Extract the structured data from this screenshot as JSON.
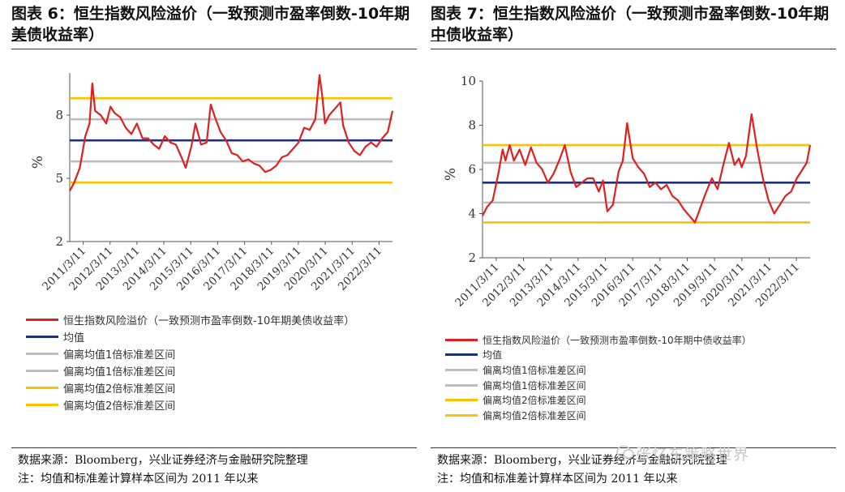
{
  "watermark": "张忆东策略世界",
  "panels": [
    {
      "title_pre": "图表 6：恒生指数风险溢价（一致预测市盈率倒数-10年期",
      "title_hl": "美",
      "title_post": "债收益率）",
      "source": "数据来源：Bloomberg，兴业证券经济与金融研究院整理",
      "note": "注：均值和标准差计算样本区间为 2011 年以来",
      "legend": [
        {
          "label": "恒生指数风险溢价（一致预测市盈率倒数-10年期美债收益率）",
          "color": "#e02020"
        },
        {
          "label": "均值",
          "color": "#1f2f78"
        },
        {
          "label": "偏离均值1倍标准差区间",
          "color": "#bdbdbd"
        },
        {
          "label": "偏离均值1倍标准差区间",
          "color": "#bdbdbd"
        },
        {
          "label": "偏离均值2倍标准差区间",
          "color": "#ffc000"
        },
        {
          "label": "偏离均值2倍标准差区间",
          "color": "#ffc000"
        }
      ],
      "chart_data": {
        "type": "line",
        "ylabel": "%",
        "ylim": [
          2,
          10
        ],
        "yticks": [
          2,
          5,
          8
        ],
        "xticks": [
          "2011/3/11",
          "2012/3/11",
          "2013/3/11",
          "2014/3/11",
          "2015/3/11",
          "2016/3/11",
          "2017/3/11",
          "2018/3/11",
          "2019/3/11",
          "2020/3/11",
          "2021/3/11",
          "2022/3/11"
        ],
        "x_start": 2011.19,
        "x_end": 2022.77,
        "reference_lines": [
          {
            "name": "均值",
            "value": 6.8,
            "color": "#1f2f78"
          },
          {
            "name": "+1倍标准差",
            "value": 7.8,
            "color": "#bdbdbd"
          },
          {
            "name": "-1倍标准差",
            "value": 5.8,
            "color": "#bdbdbd"
          },
          {
            "name": "+2倍标准差",
            "value": 8.8,
            "color": "#ffc000"
          },
          {
            "name": "-2倍标准差",
            "value": 4.8,
            "color": "#ffc000"
          }
        ],
        "series": [
          {
            "color": "#e02020",
            "x": [
              2011.19,
              2011.35,
              2011.55,
              2011.75,
              2011.9,
              2012.0,
              2012.1,
              2012.3,
              2012.5,
              2012.65,
              2012.8,
              2013.0,
              2013.2,
              2013.4,
              2013.6,
              2013.8,
              2014.0,
              2014.2,
              2014.4,
              2014.6,
              2014.8,
              2015.0,
              2015.2,
              2015.35,
              2015.55,
              2015.7,
              2015.9,
              2016.1,
              2016.25,
              2016.4,
              2016.6,
              2016.8,
              2017.0,
              2017.2,
              2017.4,
              2017.6,
              2017.8,
              2018.0,
              2018.2,
              2018.4,
              2018.6,
              2018.8,
              2019.0,
              2019.2,
              2019.4,
              2019.6,
              2019.8,
              2020.0,
              2020.15,
              2020.25,
              2020.35,
              2020.5,
              2020.7,
              2020.9,
              2021.0,
              2021.2,
              2021.4,
              2021.6,
              2021.8,
              2022.0,
              2022.2,
              2022.4,
              2022.6,
              2022.77
            ],
            "y": [
              4.4,
              4.8,
              5.5,
              7.0,
              7.6,
              9.5,
              8.2,
              8.0,
              7.6,
              8.4,
              8.1,
              7.9,
              7.4,
              7.1,
              7.6,
              6.9,
              6.9,
              6.6,
              6.4,
              7.0,
              6.7,
              6.6,
              6.0,
              5.5,
              6.5,
              7.6,
              6.6,
              6.7,
              8.5,
              7.9,
              7.2,
              6.8,
              6.2,
              6.1,
              5.8,
              5.9,
              5.7,
              5.6,
              5.3,
              5.4,
              5.6,
              6.0,
              6.1,
              6.4,
              6.7,
              7.4,
              7.3,
              7.8,
              9.9,
              8.9,
              7.6,
              8.0,
              8.3,
              8.6,
              7.5,
              6.7,
              6.3,
              6.1,
              6.5,
              6.7,
              6.5,
              6.9,
              7.2,
              8.2
            ]
          }
        ]
      }
    },
    {
      "title_pre": "图表 7：恒生指数风险溢价（一致预测市盈率倒数-10年期",
      "title_hl": "中",
      "title_post": "债收益率）",
      "source": "数据来源：Bloomberg，兴业证券经济与金融研究院整理",
      "note": "注：均值和标准差计算样本区间为 2011 年以来",
      "legend": [
        {
          "label": "恒生指数风险溢价（一致预测市盈率倒数-10年期中债收益率）",
          "color": "#e02020"
        },
        {
          "label": "均值",
          "color": "#1f2f78"
        },
        {
          "label": "偏离均值1倍标准差区间",
          "color": "#bdbdbd"
        },
        {
          "label": "偏离均值1倍标准差区间",
          "color": "#bdbdbd"
        },
        {
          "label": "偏离均值2倍标准差区间",
          "color": "#ffc000"
        },
        {
          "label": "偏离均值2倍标准差区间",
          "color": "#ffc000"
        }
      ],
      "chart_data": {
        "type": "line",
        "ylabel": "%",
        "ylim": [
          2,
          10
        ],
        "yticks": [
          2,
          4,
          6,
          8,
          10
        ],
        "xticks": [
          "2011/3/11",
          "2012/3/11",
          "2013/3/11",
          "2014/3/11",
          "2015/3/11",
          "2016/3/11",
          "2017/3/11",
          "2018/3/11",
          "2019/3/11",
          "2020/3/11",
          "2021/3/11",
          "2022/3/11"
        ],
        "x_start": 2011.19,
        "x_end": 2022.77,
        "reference_lines": [
          {
            "name": "均值",
            "value": 5.4,
            "color": "#1f2f78"
          },
          {
            "name": "+1倍标准差",
            "value": 6.3,
            "color": "#bdbdbd"
          },
          {
            "name": "-1倍标准差",
            "value": 4.5,
            "color": "#bdbdbd"
          },
          {
            "name": "+2倍标准差",
            "value": 7.1,
            "color": "#ffc000"
          },
          {
            "name": "-2倍标准差",
            "value": 3.6,
            "color": "#ffc000"
          }
        ],
        "series": [
          {
            "color": "#e02020",
            "x": [
              2011.19,
              2011.35,
              2011.55,
              2011.75,
              2011.9,
              2012.0,
              2012.15,
              2012.3,
              2012.5,
              2012.7,
              2012.9,
              2013.1,
              2013.3,
              2013.5,
              2013.7,
              2013.9,
              2014.1,
              2014.3,
              2014.5,
              2014.7,
              2014.9,
              2015.1,
              2015.3,
              2015.45,
              2015.6,
              2015.8,
              2016.0,
              2016.15,
              2016.3,
              2016.5,
              2016.7,
              2016.9,
              2017.1,
              2017.3,
              2017.5,
              2017.7,
              2017.9,
              2018.1,
              2018.3,
              2018.5,
              2018.7,
              2018.9,
              2019.1,
              2019.3,
              2019.5,
              2019.7,
              2019.9,
              2020.1,
              2020.25,
              2020.35,
              2020.5,
              2020.7,
              2020.9,
              2021.1,
              2021.3,
              2021.5,
              2021.7,
              2021.9,
              2022.1,
              2022.3,
              2022.5,
              2022.65,
              2022.77
            ],
            "y": [
              3.9,
              4.3,
              4.6,
              5.8,
              6.9,
              6.4,
              7.1,
              6.4,
              6.9,
              6.2,
              7.0,
              6.3,
              6.0,
              5.4,
              5.8,
              6.4,
              7.1,
              5.9,
              5.2,
              5.4,
              5.6,
              5.6,
              5.0,
              5.5,
              4.1,
              4.4,
              5.9,
              6.4,
              8.1,
              6.5,
              6.1,
              5.8,
              5.2,
              5.4,
              5.1,
              5.3,
              4.8,
              4.6,
              4.2,
              3.9,
              3.6,
              4.3,
              5.0,
              5.6,
              5.1,
              6.2,
              7.2,
              6.2,
              6.5,
              6.1,
              6.6,
              8.5,
              6.9,
              5.6,
              4.6,
              4.0,
              4.4,
              4.8,
              5.0,
              5.6,
              6.0,
              6.3,
              7.1
            ]
          }
        ]
      }
    }
  ]
}
